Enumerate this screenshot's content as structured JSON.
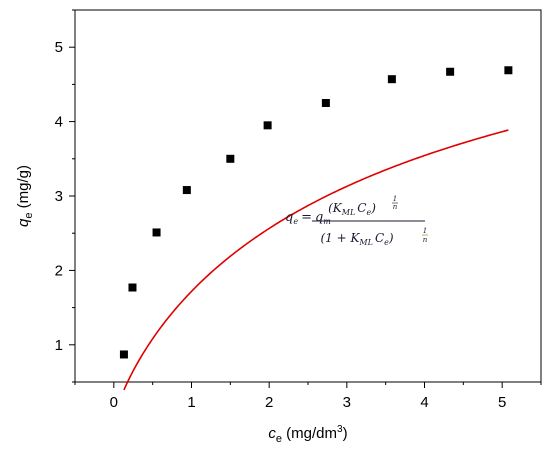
{
  "chart_data": {
    "type": "scatter",
    "xlabel": {
      "symbol": "c",
      "subscript": "e",
      "unit": " (mg/dm",
      "unit_sup": "3",
      "unit_end": ")"
    },
    "ylabel": {
      "symbol": "q",
      "subscript": "e",
      "unit": " (mg/g)"
    },
    "xlim": [
      -0.5,
      5.5
    ],
    "ylim": [
      0.5,
      5.5
    ],
    "x_ticks": [
      0,
      1,
      2,
      3,
      4,
      5
    ],
    "y_ticks": [
      1,
      2,
      3,
      4,
      5
    ],
    "grid": false,
    "series": [
      {
        "kind": "points",
        "marker": "square",
        "color": "#000000",
        "x": [
          0.13,
          0.24,
          0.55,
          0.94,
          1.5,
          1.98,
          2.73,
          3.58,
          4.33,
          5.08
        ],
        "y": [
          0.87,
          1.77,
          2.51,
          3.08,
          3.5,
          3.95,
          4.25,
          4.57,
          4.67,
          4.69
        ]
      },
      {
        "kind": "fit-line",
        "color": "#e00000",
        "model": {
          "qm": 6.93,
          "K": 0.264,
          "n": 1.2
        },
        "x_range": [
          0.13,
          5.08
        ]
      }
    ],
    "annotation": {
      "lhs": "q",
      "lhs_sub": "e",
      "eq_sign": "=",
      "coef": "q",
      "coef_sub": "m",
      "numerator": "(K",
      "numerator_sub": "ML",
      "numerator_mid": "C",
      "numerator_mid_sub": "e",
      "numerator_close": ")",
      "exponent_num": "1",
      "exponent_den": "n",
      "denominator": "(1 + K",
      "denominator_sub": "ML",
      "denominator_mid": "C",
      "denominator_mid_sub": "e",
      "denominator_close": ")"
    }
  }
}
